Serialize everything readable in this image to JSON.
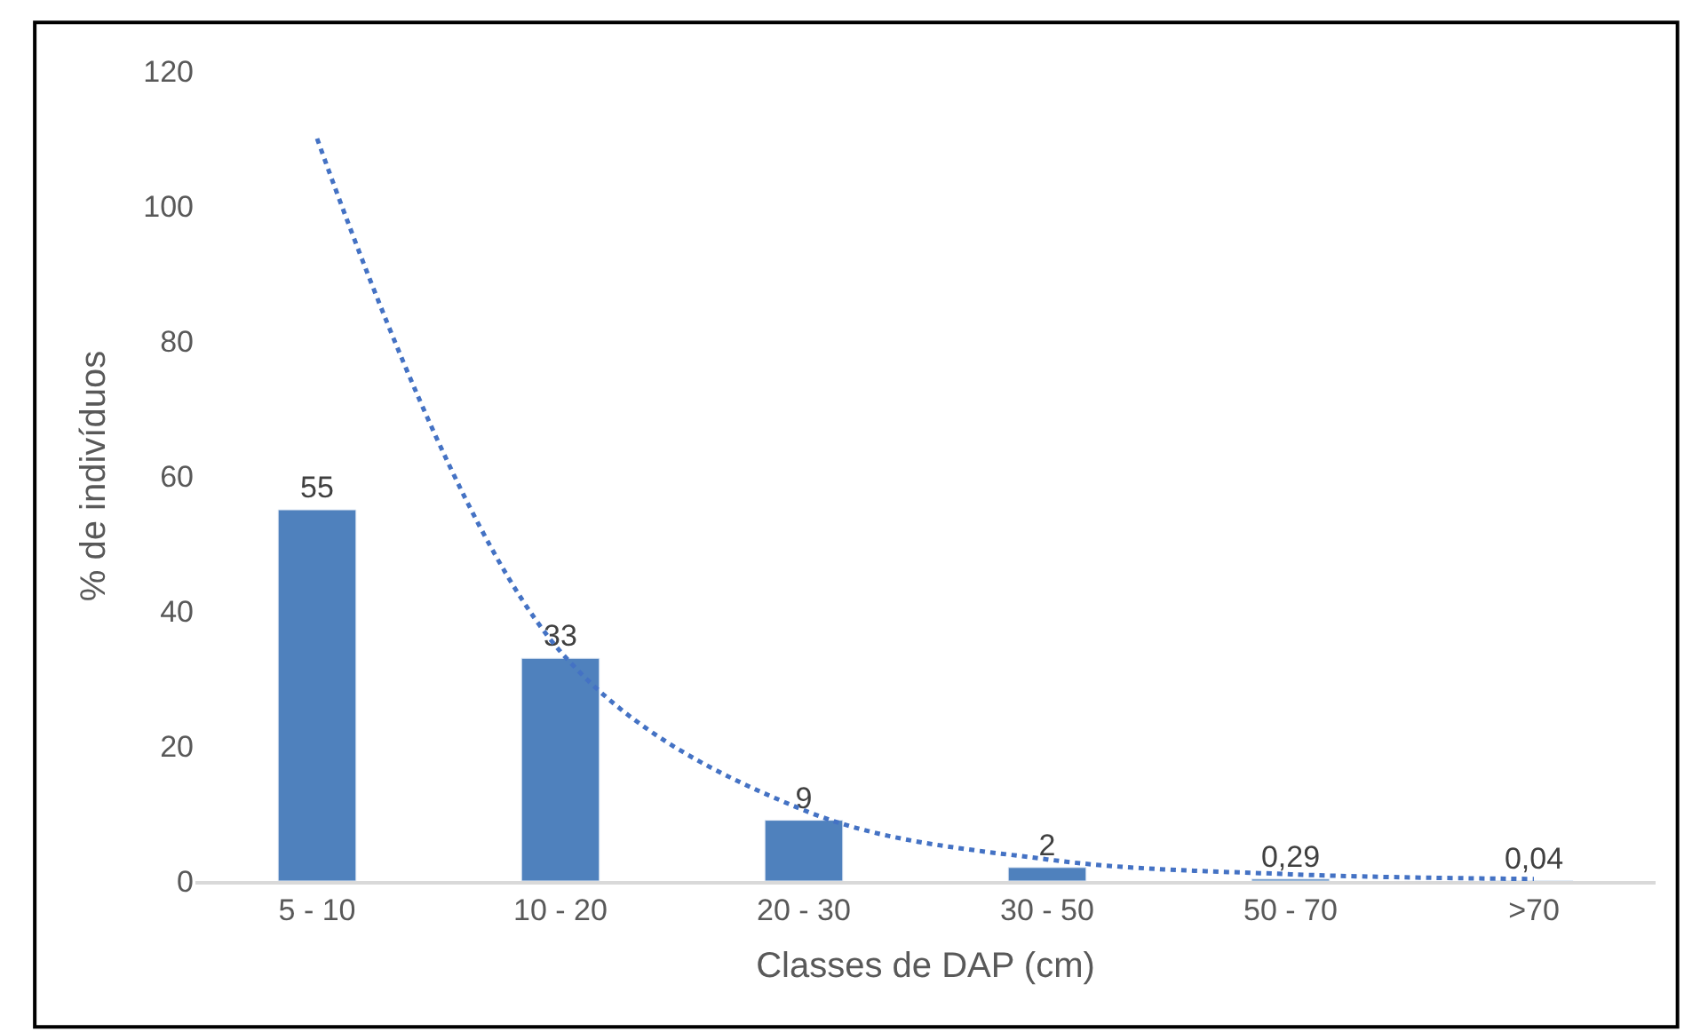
{
  "chart_data": {
    "type": "bar",
    "xlabel": "Classes de DAP (cm)",
    "ylabel": "% de indivíduos",
    "categories": [
      "5 - 10",
      "10 - 20",
      "20 - 30",
      "30 - 50",
      "50 - 70",
      ">70"
    ],
    "series": [
      {
        "color": "#4f81bd",
        "values": [
          55,
          33,
          9,
          2,
          0.29,
          0.04
        ],
        "value_labels": [
          "55",
          "33",
          "9",
          "2",
          "0,29",
          "0,04"
        ]
      },
      {
        "type": "line",
        "color": "#4472c4",
        "line_style": "dotted",
        "values": [
          110,
          34,
          10.5,
          3.2,
          1,
          0.3
        ]
      }
    ],
    "ylim": [
      0,
      120
    ],
    "yticks": [
      0,
      20,
      40,
      60,
      80,
      100,
      120
    ],
    "grid": false,
    "legend": false
  }
}
